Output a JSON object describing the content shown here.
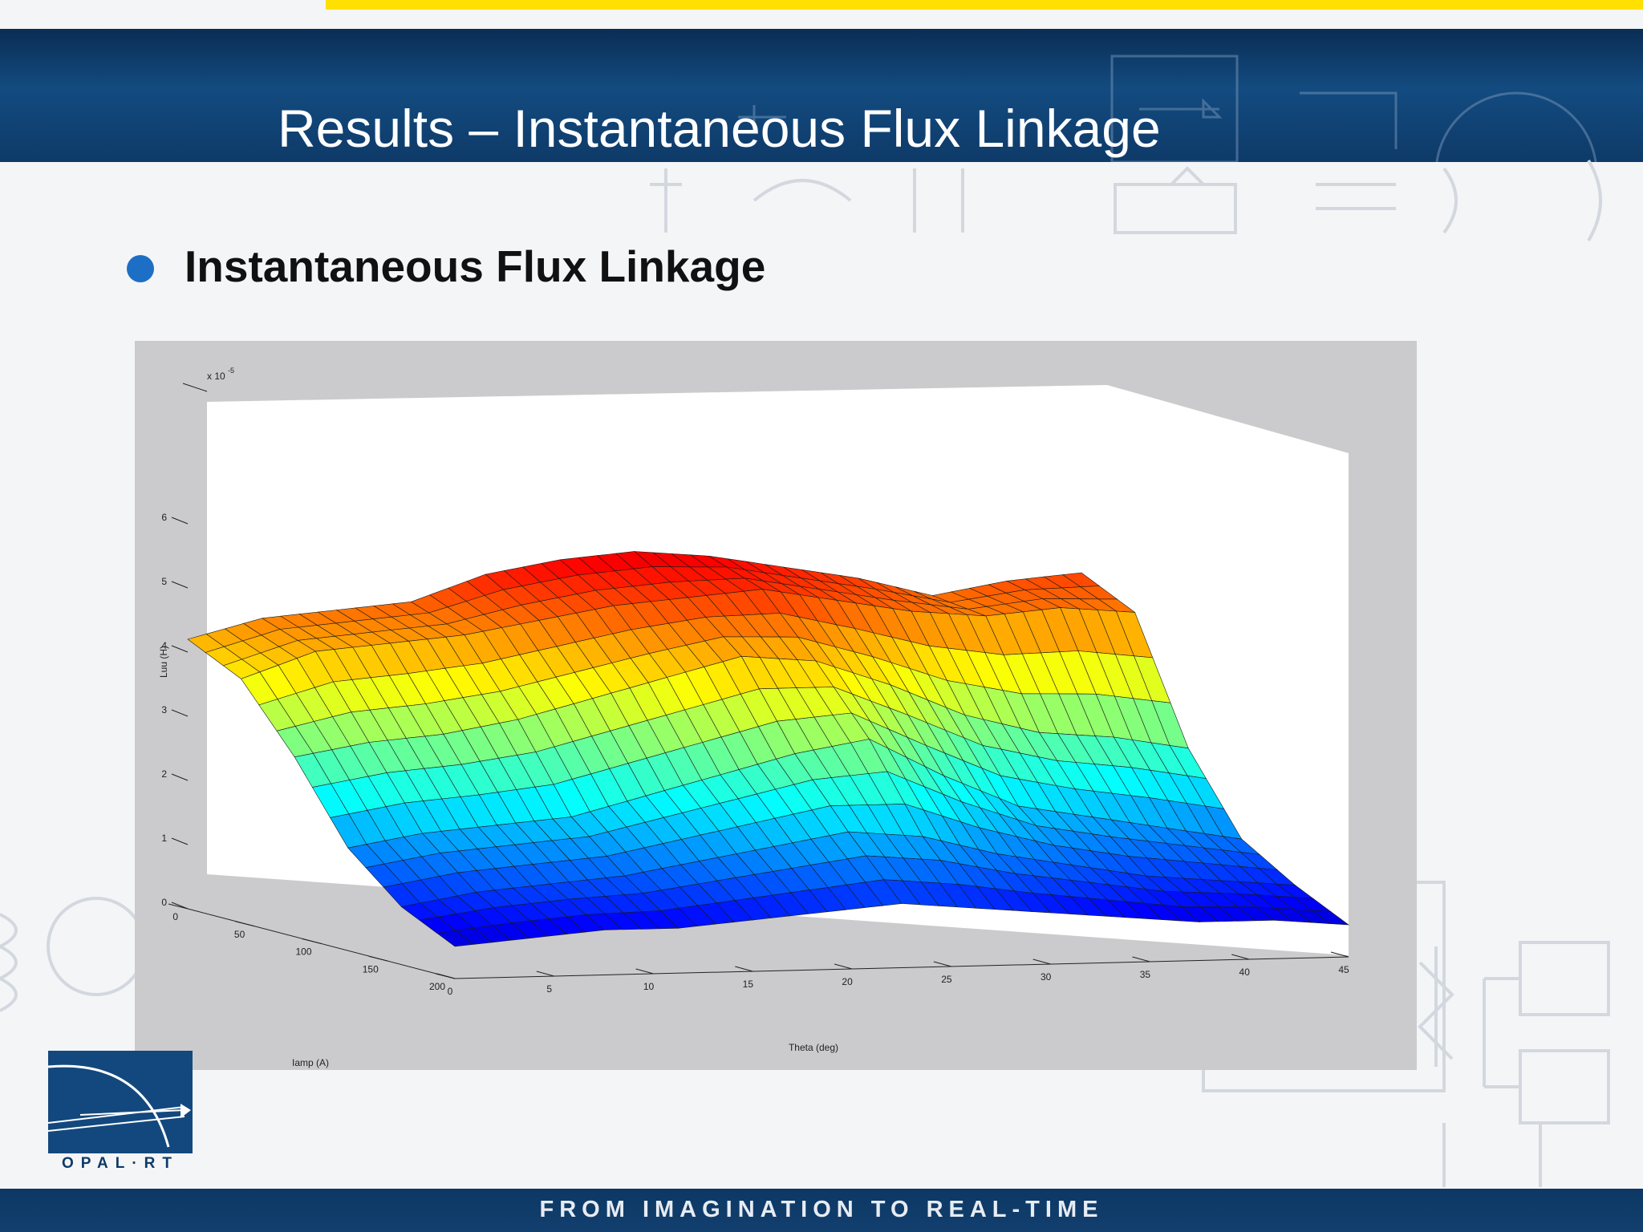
{
  "slide": {
    "title": "Results – Instantaneous Flux Linkage",
    "bullet": "Instantaneous Flux Linkage",
    "logo_text": "OPAL·RT",
    "tagline": "FROM IMAGINATION TO REAL-TIME"
  },
  "colors": {
    "stripe": "#ffe000",
    "header": "#134b80",
    "bullet": "#1c6fc4",
    "footer": "#0d3864"
  },
  "chart_data": {
    "type": "surface",
    "title": "",
    "xlabel": "Theta (deg)",
    "ylabel": "Iamp (A)",
    "zlabel": "Luu (H)",
    "z_multiplier": "x 10",
    "z_exponent": "-5",
    "x_ticks": [
      "0",
      "5",
      "10",
      "15",
      "20",
      "25",
      "30",
      "35",
      "40",
      "45"
    ],
    "y_ticks": [
      "0",
      "50",
      "100",
      "150",
      "200"
    ],
    "z_ticks": [
      "0",
      "1",
      "2",
      "3",
      "4",
      "5",
      "6"
    ],
    "xlim": [
      0,
      45
    ],
    "ylim": [
      0,
      200
    ],
    "zlim": [
      0,
      6
    ],
    "colormap": "jet",
    "z_scale": 1e-05,
    "surface_rows": [
      {
        "iamp": 0,
        "z": [
          4.2,
          4.5,
          4.6,
          4.7,
          5.1,
          5.3,
          5.4,
          5.3,
          5.1,
          4.9,
          4.6,
          4.8,
          4.9
        ]
      },
      {
        "iamp": 40,
        "z": [
          3.8,
          4.2,
          4.3,
          4.4,
          4.6,
          4.8,
          4.9,
          5.0,
          4.8,
          4.6,
          4.5,
          4.6,
          4.5
        ]
      },
      {
        "iamp": 80,
        "z": [
          2.8,
          3.0,
          3.1,
          3.3,
          3.6,
          3.9,
          4.2,
          4.1,
          3.7,
          3.2,
          2.9,
          2.8,
          2.6
        ]
      },
      {
        "iamp": 120,
        "z": [
          1.6,
          1.8,
          1.9,
          2.0,
          2.3,
          2.6,
          2.9,
          3.1,
          2.5,
          2.0,
          1.8,
          1.6,
          1.4
        ]
      },
      {
        "iamp": 160,
        "z": [
          0.9,
          1.1,
          1.2,
          1.3,
          1.5,
          1.7,
          1.9,
          1.8,
          1.5,
          1.3,
          1.1,
          1.0,
          0.9
        ]
      },
      {
        "iamp": 200,
        "z": [
          0.5,
          0.6,
          0.7,
          0.7,
          0.8,
          0.9,
          1.0,
          0.9,
          0.8,
          0.7,
          0.6,
          0.6,
          0.5
        ]
      }
    ]
  }
}
